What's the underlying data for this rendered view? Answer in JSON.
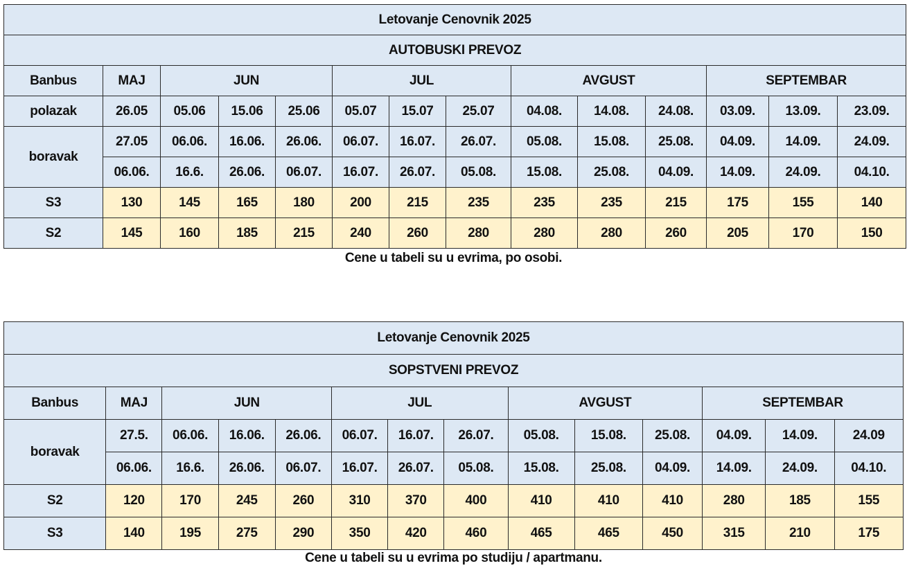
{
  "table1": {
    "title": "Letovanje Cenovnik 2025",
    "subtitle": "AUTOBUSKI PREVOZ",
    "corner": "Banbus",
    "months": [
      "MAJ",
      "JUN",
      "JUL",
      "AVGUST",
      "SEPTEMBAR"
    ],
    "polazak_label": "polazak",
    "polazak": [
      "26.05",
      "05.06",
      "15.06",
      "25.06",
      "05.07",
      "15.07",
      "25.07",
      "04.08.",
      "14.08.",
      "24.08.",
      "03.09.",
      "13.09.",
      "23.09."
    ],
    "boravak_label": "boravak",
    "boravak_from": [
      "27.05",
      "06.06.",
      "16.06.",
      "26.06.",
      "06.07.",
      "16.07.",
      "26.07.",
      "05.08.",
      "15.08.",
      "25.08.",
      "04.09.",
      "14.09.",
      "24.09."
    ],
    "boravak_to": [
      "06.06.",
      "16.6.",
      "26.06.",
      "06.07.",
      "16.07.",
      "26.07.",
      "05.08.",
      "15.08.",
      "25.08.",
      "04.09.",
      "14.09.",
      "24.09.",
      "04.10."
    ],
    "rows": [
      {
        "label": "S3",
        "values": [
          "130",
          "145",
          "165",
          "180",
          "200",
          "215",
          "235",
          "235",
          "235",
          "215",
          "175",
          "155",
          "140"
        ]
      },
      {
        "label": "S2",
        "values": [
          "145",
          "160",
          "185",
          "215",
          "240",
          "260",
          "280",
          "280",
          "280",
          "260",
          "205",
          "170",
          "150"
        ]
      }
    ],
    "note": "Cene u tabeli su u evrima, po osobi."
  },
  "table2": {
    "title": "Letovanje Cenovnik 2025",
    "subtitle": "SOPSTVENI PREVOZ",
    "corner": "Banbus",
    "months": [
      "MAJ",
      "JUN",
      "JUL",
      "AVGUST",
      "SEPTEMBAR"
    ],
    "boravak_label": "boravak",
    "boravak_from": [
      "27.5.",
      "06.06.",
      "16.06.",
      "26.06.",
      "06.07.",
      "16.07.",
      "26.07.",
      "05.08.",
      "15.08.",
      "25.08.",
      "04.09.",
      "14.09.",
      "24.09"
    ],
    "boravak_to": [
      "06.06.",
      "16.6.",
      "26.06.",
      "06.07.",
      "16.07.",
      "26.07.",
      "05.08.",
      "15.08.",
      "25.08.",
      "04.09.",
      "14.09.",
      "24.09.",
      "04.10."
    ],
    "rows": [
      {
        "label": "S2",
        "values": [
          "120",
          "170",
          "245",
          "260",
          "310",
          "370",
          "400",
          "410",
          "410",
          "410",
          "280",
          "185",
          "155"
        ]
      },
      {
        "label": "S3",
        "values": [
          "140",
          "195",
          "275",
          "290",
          "350",
          "420",
          "460",
          "465",
          "465",
          "450",
          "315",
          "210",
          "175"
        ]
      }
    ],
    "note": "Cene u tabeli su u evrima po studiju / apartmanu."
  }
}
